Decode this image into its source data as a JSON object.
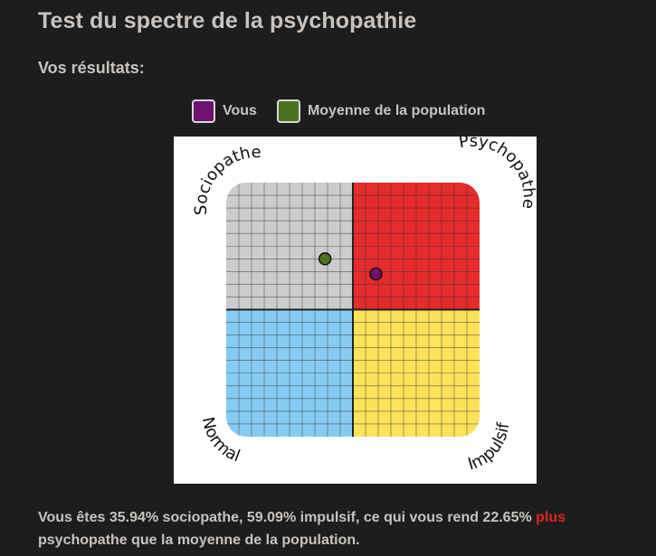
{
  "page": {
    "title": "Test du spectre de la psychopathie",
    "subtitle": "Vos résultats:"
  },
  "legend": {
    "items": [
      {
        "label": "Vous",
        "color": "#6e1170"
      },
      {
        "label": "Moyenne de la population",
        "color": "#4a7320"
      }
    ]
  },
  "chart_data": {
    "type": "scatter",
    "quadrant_labels": {
      "top_left": "Sociopathe",
      "top_right": "Psychopathe",
      "bottom_left": "Normal",
      "bottom_right": "Impulsif"
    },
    "quadrant_colors": {
      "top_left": "#cccccc",
      "top_right": "#e52b2b",
      "bottom_left": "#86ccf2",
      "bottom_right": "#fde35a"
    },
    "xlim": [
      0,
      100
    ],
    "ylim": [
      0,
      100
    ],
    "grid": true,
    "points": [
      {
        "name": "Vous",
        "x": 59.09,
        "y": 35.94,
        "color": "#6e1170"
      },
      {
        "name": "Moyenne de la population",
        "x": 39,
        "y": 30,
        "color": "#4a7320"
      }
    ]
  },
  "result": {
    "text_before": "Vous êtes 35.94% sociopathe, 59.09% impulsif, ce qui vous rend 22.65%",
    "highlight": "plus",
    "highlight_color": "#e0221e",
    "text_after": "psychopathe que la moyenne de la population."
  }
}
